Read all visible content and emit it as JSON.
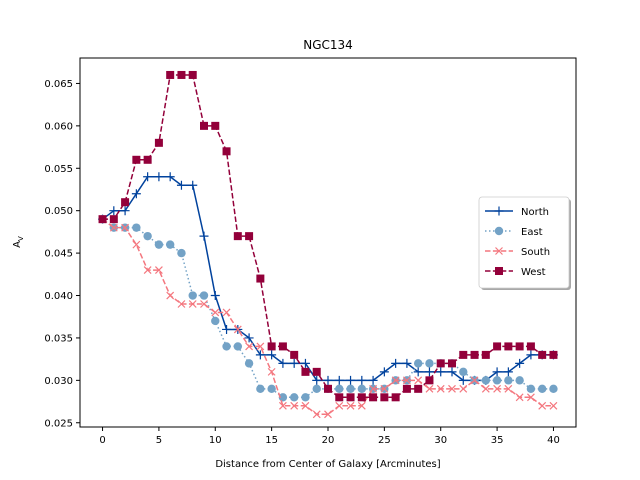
{
  "chart_data": {
    "type": "line",
    "title": "NGC134",
    "xlabel": "Distance from Center of Galaxy [Arcminutes]",
    "ylabel_main": "A",
    "ylabel_sub": "V",
    "xlim": [
      -2,
      42
    ],
    "ylim": [
      0.0245,
      0.068
    ],
    "xticks": [
      0,
      5,
      10,
      15,
      20,
      25,
      30,
      35,
      40
    ],
    "yticks": [
      0.025,
      0.03,
      0.035,
      0.04,
      0.045,
      0.05,
      0.055,
      0.06,
      0.065
    ],
    "ytick_labels": [
      "0.025",
      "0.030",
      "0.035",
      "0.040",
      "0.045",
      "0.050",
      "0.055",
      "0.060",
      "0.065"
    ],
    "grid": false,
    "legend_position": "center-right",
    "x": [
      0,
      1,
      2,
      3,
      4,
      5,
      6,
      7,
      8,
      9,
      10,
      11,
      12,
      13,
      14,
      15,
      16,
      17,
      18,
      19,
      20,
      21,
      22,
      23,
      24,
      25,
      26,
      27,
      28,
      29,
      30,
      31,
      32,
      33,
      34,
      35,
      36,
      37,
      38,
      39,
      40
    ],
    "series": [
      {
        "name": "North",
        "color": "#00429d",
        "linestyle": "solid",
        "marker": "plus",
        "values": [
          0.049,
          0.05,
          0.05,
          0.052,
          0.054,
          0.054,
          0.054,
          0.053,
          0.053,
          0.047,
          0.04,
          0.036,
          0.036,
          0.035,
          0.033,
          0.033,
          0.032,
          0.032,
          0.032,
          0.03,
          0.03,
          0.03,
          0.03,
          0.03,
          0.03,
          0.031,
          0.032,
          0.032,
          0.031,
          0.031,
          0.031,
          0.031,
          0.03,
          0.03,
          0.03,
          0.031,
          0.031,
          0.032,
          0.033,
          0.033,
          0.033
        ]
      },
      {
        "name": "East",
        "color": "#73a2c6",
        "linestyle": "dotted",
        "marker": "circle",
        "values": [
          0.049,
          0.048,
          0.048,
          0.048,
          0.047,
          0.046,
          0.046,
          0.045,
          0.04,
          0.04,
          0.037,
          0.034,
          0.034,
          0.032,
          0.029,
          0.029,
          0.028,
          0.028,
          0.028,
          0.029,
          0.029,
          0.029,
          0.029,
          0.029,
          0.029,
          0.029,
          0.03,
          0.03,
          0.032,
          0.032,
          0.032,
          0.032,
          0.031,
          0.03,
          0.03,
          0.03,
          0.03,
          0.03,
          0.029,
          0.029,
          0.029
        ]
      },
      {
        "name": "South",
        "color": "#f4777f",
        "linestyle": "dashed",
        "marker": "x",
        "values": [
          0.049,
          0.048,
          0.048,
          0.046,
          0.043,
          0.043,
          0.04,
          0.039,
          0.039,
          0.039,
          0.038,
          0.038,
          0.036,
          0.034,
          0.034,
          0.031,
          0.027,
          0.027,
          0.027,
          0.026,
          0.026,
          0.027,
          0.027,
          0.027,
          0.029,
          0.029,
          0.03,
          0.03,
          0.03,
          0.029,
          0.029,
          0.029,
          0.029,
          0.03,
          0.029,
          0.029,
          0.029,
          0.028,
          0.028,
          0.027,
          0.027
        ]
      },
      {
        "name": "West",
        "color": "#93003a",
        "linestyle": "dashed",
        "marker": "square",
        "values": [
          0.049,
          0.049,
          0.051,
          0.056,
          0.056,
          0.058,
          0.066,
          0.066,
          0.066,
          0.06,
          0.06,
          0.057,
          0.047,
          0.047,
          0.042,
          0.034,
          0.034,
          0.033,
          0.031,
          0.031,
          0.029,
          0.028,
          0.028,
          0.028,
          0.028,
          0.028,
          0.028,
          0.029,
          0.029,
          0.03,
          0.032,
          0.032,
          0.033,
          0.033,
          0.033,
          0.034,
          0.034,
          0.034,
          0.034,
          0.033,
          0.033
        ]
      }
    ]
  }
}
